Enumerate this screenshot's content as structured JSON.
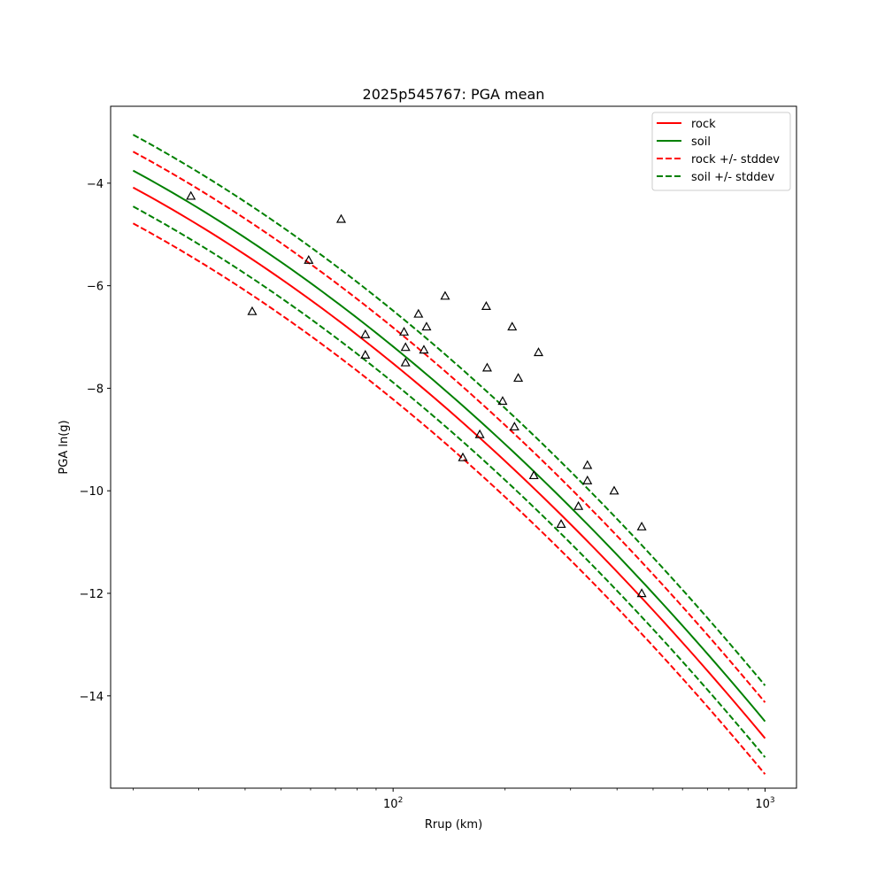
{
  "chart_data": {
    "type": "line",
    "title": "2025p545767: PGA mean",
    "xlabel": "Rrup (km)",
    "ylabel": "PGA ln(g)",
    "xscale": "log",
    "xlim": [
      17.4,
      1215
    ],
    "ylim": [
      -15.8,
      -2.5
    ],
    "grid": false,
    "legend_position": "top-right",
    "x_ticks": [
      {
        "value": 100,
        "base": "10",
        "exp": "2"
      },
      {
        "value": 1000,
        "base": "10",
        "exp": "3"
      }
    ],
    "x_minor_ticks": [
      20,
      30,
      40,
      50,
      60,
      70,
      80,
      90,
      200,
      300,
      400,
      500,
      600,
      700,
      800,
      900
    ],
    "y_ticks": [
      {
        "value": -4,
        "label": "−4"
      },
      {
        "value": -6,
        "label": "−6"
      },
      {
        "value": -8,
        "label": "−8"
      },
      {
        "value": -10,
        "label": "−10"
      },
      {
        "value": -12,
        "label": "−12"
      },
      {
        "value": -14,
        "label": "−14"
      }
    ],
    "x": [
      20,
      30,
      50,
      70,
      100,
      150,
      200,
      300,
      400,
      500,
      600,
      700,
      800,
      1000
    ],
    "series": [
      {
        "name": "rock",
        "color": "#ff0000",
        "style": "solid",
        "values": [
          -4.15,
          -4.84,
          -5.86,
          -6.58,
          -7.42,
          -8.51,
          -9.35,
          -10.66,
          -11.68,
          -12.51,
          -13.14,
          -13.62,
          -13.98,
          -14.5
        ]
      },
      {
        "name": "soil",
        "color": "#008000",
        "style": "solid",
        "values": [
          -3.82,
          -4.51,
          -5.53,
          -6.25,
          -7.09,
          -8.18,
          -9.02,
          -10.33,
          -11.35,
          -12.18,
          -12.81,
          -13.29,
          -13.65,
          -14.17
        ]
      },
      {
        "name": "rock +/- stddev",
        "color": "#ff0000",
        "style": "dashed",
        "values": [
          -3.45,
          -4.14,
          -5.16,
          -5.88,
          -6.72,
          -7.81,
          -8.65,
          -9.96,
          -10.98,
          -11.81,
          -12.44,
          -12.92,
          -13.28,
          -13.8
        ]
      },
      {
        "name": "",
        "color": "#ff0000",
        "style": "dashed",
        "values": [
          -4.85,
          -5.54,
          -6.56,
          -7.28,
          -8.12,
          -9.21,
          -10.05,
          -11.36,
          -12.38,
          -13.21,
          -13.84,
          -14.32,
          -14.68,
          -15.2
        ]
      },
      {
        "name": "soil +/- stddev",
        "color": "#008000",
        "style": "dashed",
        "values": [
          -3.12,
          -3.81,
          -4.83,
          -5.55,
          -6.39,
          -7.48,
          -8.32,
          -9.63,
          -10.65,
          -11.48,
          -12.11,
          -12.59,
          -12.95,
          -13.47
        ]
      },
      {
        "name": "",
        "color": "#008000",
        "style": "dashed",
        "values": [
          -4.52,
          -5.21,
          -6.23,
          -6.95,
          -7.79,
          -8.88,
          -9.72,
          -11.03,
          -12.05,
          -12.88,
          -13.51,
          -13.99,
          -14.35,
          -14.87
        ]
      }
    ],
    "legend": [
      {
        "label": "rock",
        "color": "#ff0000",
        "style": "solid"
      },
      {
        "label": "soil",
        "color": "#008000",
        "style": "solid"
      },
      {
        "label": "rock +/- stddev",
        "color": "#ff0000",
        "style": "dashed"
      },
      {
        "label": "soil +/- stddev",
        "color": "#008000",
        "style": "dashed"
      }
    ],
    "observations": {
      "marker": "triangle",
      "color": "#000000",
      "points": [
        {
          "x": 28.6,
          "y": -4.25
        },
        {
          "x": 41.8,
          "y": -6.5
        },
        {
          "x": 59.3,
          "y": -5.5
        },
        {
          "x": 72.5,
          "y": -4.7
        },
        {
          "x": 84.2,
          "y": -6.95
        },
        {
          "x": 84.2,
          "y": -7.35
        },
        {
          "x": 107,
          "y": -6.9
        },
        {
          "x": 108,
          "y": -7.2
        },
        {
          "x": 108,
          "y": -7.5
        },
        {
          "x": 117,
          "y": -6.55
        },
        {
          "x": 121,
          "y": -7.25
        },
        {
          "x": 123,
          "y": -6.8
        },
        {
          "x": 138,
          "y": -6.2
        },
        {
          "x": 154,
          "y": -9.35
        },
        {
          "x": 171,
          "y": -8.9
        },
        {
          "x": 178,
          "y": -6.4
        },
        {
          "x": 179,
          "y": -7.6
        },
        {
          "x": 197,
          "y": -8.25
        },
        {
          "x": 209,
          "y": -6.8
        },
        {
          "x": 212,
          "y": -8.75
        },
        {
          "x": 217,
          "y": -7.8
        },
        {
          "x": 239,
          "y": -9.7
        },
        {
          "x": 246,
          "y": -7.3
        },
        {
          "x": 283,
          "y": -10.65
        },
        {
          "x": 315,
          "y": -10.3
        },
        {
          "x": 333,
          "y": -9.5
        },
        {
          "x": 333,
          "y": -9.8
        },
        {
          "x": 393,
          "y": -10.0
        },
        {
          "x": 466,
          "y": -10.7
        },
        {
          "x": 466,
          "y": -12.0
        }
      ]
    }
  }
}
